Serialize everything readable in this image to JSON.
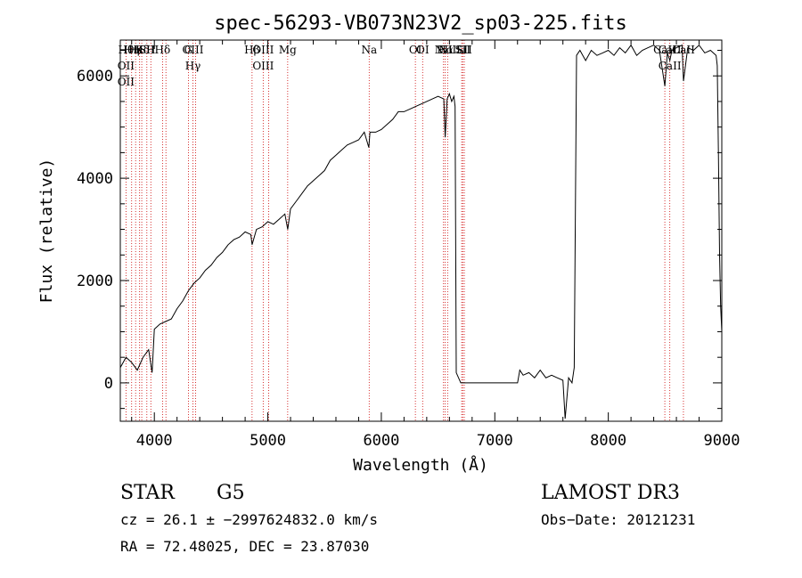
{
  "chart_data": {
    "type": "line",
    "title": "spec-56293-VB073N23V2_sp03-225.fits",
    "xlabel": "Wavelength (Å)",
    "ylabel": "Flux (relative)",
    "xlim": [
      3700,
      9000
    ],
    "ylim": [
      -750,
      6700
    ],
    "x_ticks": [
      4000,
      5000,
      6000,
      7000,
      8000,
      9000
    ],
    "y_ticks": [
      0,
      2000,
      4000,
      6000
    ],
    "grid": false,
    "series": [
      {
        "name": "flux",
        "x": [
          3700,
          3750,
          3800,
          3850,
          3900,
          3950,
          3980,
          4000,
          4050,
          4100,
          4150,
          4200,
          4250,
          4300,
          4350,
          4400,
          4450,
          4500,
          4550,
          4600,
          4650,
          4700,
          4750,
          4800,
          4850,
          4861,
          4900,
          4950,
          5000,
          5050,
          5100,
          5150,
          5175,
          5200,
          5250,
          5300,
          5350,
          5400,
          5450,
          5500,
          5550,
          5600,
          5650,
          5700,
          5750,
          5800,
          5850,
          5890,
          5900,
          5950,
          6000,
          6050,
          6100,
          6150,
          6200,
          6250,
          6300,
          6350,
          6400,
          6450,
          6500,
          6550,
          6563,
          6580,
          6600,
          6620,
          6640,
          6650,
          6660,
          6700,
          6800,
          6900,
          7000,
          7100,
          7200,
          7220,
          7250,
          7300,
          7350,
          7400,
          7450,
          7500,
          7550,
          7600,
          7620,
          7650,
          7680,
          7700,
          7720,
          7750,
          7800,
          7850,
          7900,
          7950,
          8000,
          8050,
          8100,
          8150,
          8200,
          8250,
          8300,
          8350,
          8400,
          8450,
          8498,
          8520,
          8542,
          8560,
          8600,
          8650,
          8662,
          8700,
          8750,
          8800,
          8850,
          8900,
          8950,
          8960,
          8970,
          8980,
          8990,
          9000
        ],
        "y": [
          300,
          500,
          400,
          250,
          500,
          650,
          200,
          1050,
          1150,
          1200,
          1250,
          1450,
          1600,
          1800,
          1950,
          2050,
          2200,
          2300,
          2450,
          2550,
          2700,
          2800,
          2850,
          2950,
          2900,
          2700,
          3000,
          3050,
          3150,
          3100,
          3200,
          3300,
          3000,
          3400,
          3550,
          3700,
          3850,
          3950,
          4050,
          4150,
          4350,
          4450,
          4550,
          4650,
          4700,
          4750,
          4900,
          4600,
          4900,
          4900,
          4950,
          5050,
          5150,
          5300,
          5300,
          5350,
          5400,
          5450,
          5500,
          5550,
          5600,
          5550,
          4800,
          5550,
          5650,
          5500,
          5600,
          5400,
          200,
          0,
          0,
          0,
          0,
          0,
          0,
          250,
          150,
          200,
          100,
          250,
          100,
          150,
          100,
          50,
          -700,
          100,
          0,
          300,
          6400,
          6500,
          6300,
          6500,
          6400,
          6450,
          6500,
          6400,
          6550,
          6450,
          6600,
          6400,
          6500,
          6550,
          6600,
          6500,
          5800,
          6450,
          6300,
          6500,
          6550,
          6600,
          5900,
          6550,
          6500,
          6600,
          6450,
          6500,
          6400,
          6200,
          4500,
          2500,
          1500,
          1000
        ]
      }
    ],
    "line_markers": [
      {
        "wavelength": 3750,
        "labels": [
          "Hθ",
          "OII",
          "OII"
        ]
      },
      {
        "wavelength": 3800,
        "labels": [
          "Hη"
        ]
      },
      {
        "wavelength": 3835,
        "labels": [
          "Hε"
        ]
      },
      {
        "wavelength": 3870,
        "labels": [
          "K"
        ]
      },
      {
        "wavelength": 3889,
        "labels": [
          "Hδ"
        ]
      },
      {
        "wavelength": 3934,
        "labels": [
          "SII"
        ]
      },
      {
        "wavelength": 3969,
        "labels": [
          "H"
        ]
      },
      {
        "wavelength": 4072,
        "labels": [
          "Hδ"
        ]
      },
      {
        "wavelength": 4102,
        "labels": []
      },
      {
        "wavelength": 4300,
        "labels": [
          "G"
        ]
      },
      {
        "wavelength": 4340,
        "labels": [
          "OIII",
          "Hγ"
        ]
      },
      {
        "wavelength": 4363,
        "labels": []
      },
      {
        "wavelength": 4861,
        "labels": [
          "Hβ"
        ]
      },
      {
        "wavelength": 4959,
        "labels": [
          "OIII",
          "OIII"
        ]
      },
      {
        "wavelength": 5007,
        "labels": []
      },
      {
        "wavelength": 5175,
        "labels": [
          "Mg"
        ]
      },
      {
        "wavelength": 5893,
        "labels": [
          "Na"
        ]
      },
      {
        "wavelength": 6300,
        "labels": [
          "OI"
        ]
      },
      {
        "wavelength": 6364,
        "labels": [
          "OI"
        ]
      },
      {
        "wavelength": 6548,
        "labels": [
          "NII"
        ]
      },
      {
        "wavelength": 6563,
        "labels": [
          "Hα"
        ]
      },
      {
        "wavelength": 6584,
        "labels": [
          "NII"
        ]
      },
      {
        "wavelength": 6708,
        "labels": [
          "Li"
        ]
      },
      {
        "wavelength": 6717,
        "labels": [
          "SII"
        ]
      },
      {
        "wavelength": 6731,
        "labels": [
          "SII"
        ]
      },
      {
        "wavelength": 8498,
        "labels": [
          "CaII"
        ]
      },
      {
        "wavelength": 8542,
        "labels": [
          "CaII",
          "CaII"
        ]
      },
      {
        "wavelength": 8662,
        "labels": [
          "CaII"
        ]
      }
    ]
  },
  "info": {
    "object_class": "STAR",
    "subclass": "G5",
    "survey": "LAMOST DR3",
    "cz_line": "cz = 26.1 ± −2997624832.0 km/s",
    "obs_date_line": "Obs−Date: 20121231",
    "radec_line": "RA =  72.48025, DEC =  23.87030"
  },
  "colors": {
    "axis": "#000000",
    "spectrum": "#000000",
    "marker": "#cc0000"
  }
}
